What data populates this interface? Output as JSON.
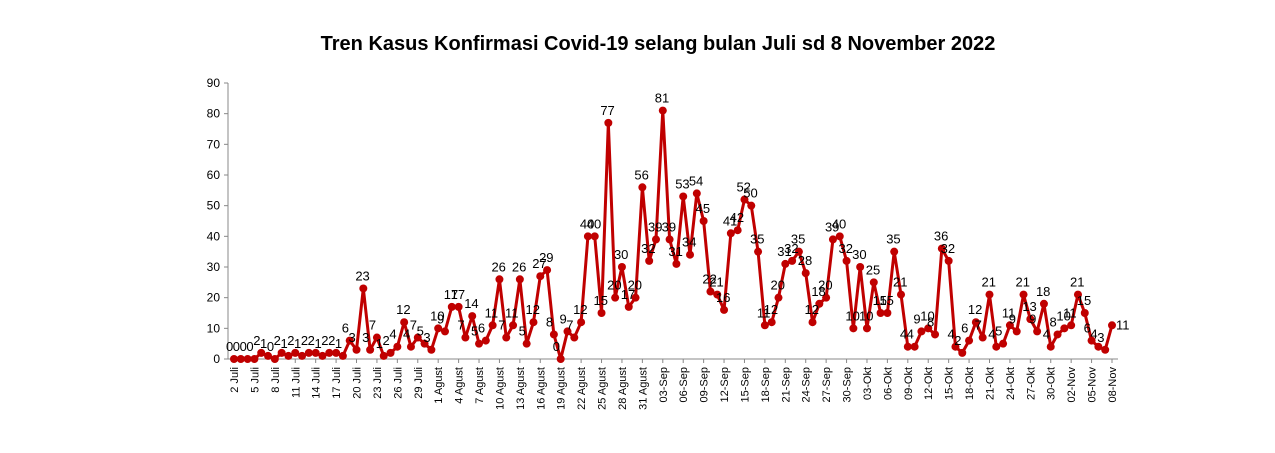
{
  "chart_data": {
    "type": "line",
    "title": "Tren Kasus Konfirmasi Covid-19 selang bulan Juli  sd 8  November 2022",
    "xlabel": "",
    "ylabel": "",
    "ylim": [
      0,
      90
    ],
    "yticks": [
      0,
      10,
      20,
      30,
      40,
      50,
      60,
      70,
      80,
      90
    ],
    "grid": false,
    "legend": "none",
    "line_color": "#C00000",
    "marker_color": "#C00000",
    "tick_labels": [
      "2 Juli",
      "5 Juli",
      "8 Juli",
      "11 Juli",
      "14 Juli",
      "17 Juli",
      "20 Juli",
      "23 Juli",
      "26 Juli",
      "29 Juli",
      "1 Agust",
      "4 Agust",
      "7 Agust",
      "10 Agust",
      "13 Agust",
      "16 Agust",
      "19 Agust",
      "22 Agust",
      "25 Agust",
      "28 Agust",
      "31 Agust",
      "03-Sep",
      "06-Sep",
      "09-Sep",
      "12-Sep",
      "15-Sep",
      "18-Sep",
      "21-Sep",
      "24-Sep",
      "27-Sep",
      "30-Sep",
      "03-Okt",
      "06-Okt",
      "09-Okt",
      "12-Okt",
      "15-Okt",
      "18-Okt",
      "21-Okt",
      "24-Okt",
      "27-Okt",
      "30-Okt",
      "02-Nov",
      "05-Nov",
      "08-Nov"
    ],
    "values": [
      0,
      0,
      0,
      0,
      2,
      1,
      0,
      2,
      1,
      2,
      1,
      2,
      2,
      1,
      2,
      2,
      1,
      6,
      3,
      23,
      3,
      7,
      1,
      2,
      4,
      12,
      4,
      7,
      5,
      3,
      10,
      9,
      17,
      17,
      7,
      14,
      5,
      6,
      11,
      26,
      7,
      11,
      26,
      5,
      12,
      27,
      29,
      8,
      0,
      9,
      7,
      12,
      40,
      40,
      15,
      77,
      20,
      30,
      17,
      20,
      56,
      32,
      39,
      81,
      39,
      31,
      53,
      34,
      54,
      45,
      22,
      21,
      16,
      41,
      42,
      52,
      50,
      35,
      11,
      12,
      20,
      31,
      32,
      35,
      28,
      12,
      18,
      20,
      39,
      40,
      32,
      10,
      30,
      10,
      25,
      15,
      15,
      35,
      21,
      4,
      4,
      9,
      10,
      8,
      36,
      32,
      4,
      2,
      6,
      12,
      7,
      21,
      4,
      5,
      11,
      9,
      21,
      13,
      9,
      18,
      4,
      8,
      10,
      11,
      21,
      15,
      6,
      4,
      3,
      11
    ],
    "data_labels": [
      "0",
      "0",
      "0",
      "0",
      "2",
      "1",
      "0",
      "2",
      "1",
      "2",
      "1",
      "2",
      "2",
      "1",
      "2",
      "2",
      "1",
      "6",
      "3",
      "23",
      "3",
      "7",
      "1",
      "2",
      "4",
      "12",
      "4",
      "7",
      "5",
      "3",
      "10",
      "9",
      "17",
      "17",
      "7",
      "14",
      "5",
      "6",
      "11",
      "26",
      "7",
      "11",
      "26",
      "5",
      "12",
      "27",
      "29",
      "8",
      "0",
      "9",
      "7",
      "12",
      "40",
      "40",
      "15",
      "77",
      "20",
      "30",
      "17",
      "20",
      "56",
      "32",
      "39",
      "81",
      "39",
      "31",
      "53",
      "34",
      "54",
      "45",
      "22",
      "21",
      "16",
      "41",
      "42",
      "52",
      "50",
      "35",
      "11",
      "12",
      "20",
      "31",
      "32",
      "35",
      "28",
      "12",
      "18",
      "20",
      "39",
      "40",
      "32",
      "10",
      "30",
      "10",
      "25",
      "15",
      "15",
      "35",
      "21",
      "4",
      "4",
      "9",
      "10",
      "8",
      "36",
      "32",
      "4",
      "2",
      "6",
      "12",
      "7",
      "21",
      "4",
      "5",
      "11",
      "9",
      "21",
      "13",
      "9",
      "18",
      "4",
      "8",
      "10",
      "11",
      "21",
      "15",
      "6",
      "4",
      "3",
      "11"
    ]
  }
}
